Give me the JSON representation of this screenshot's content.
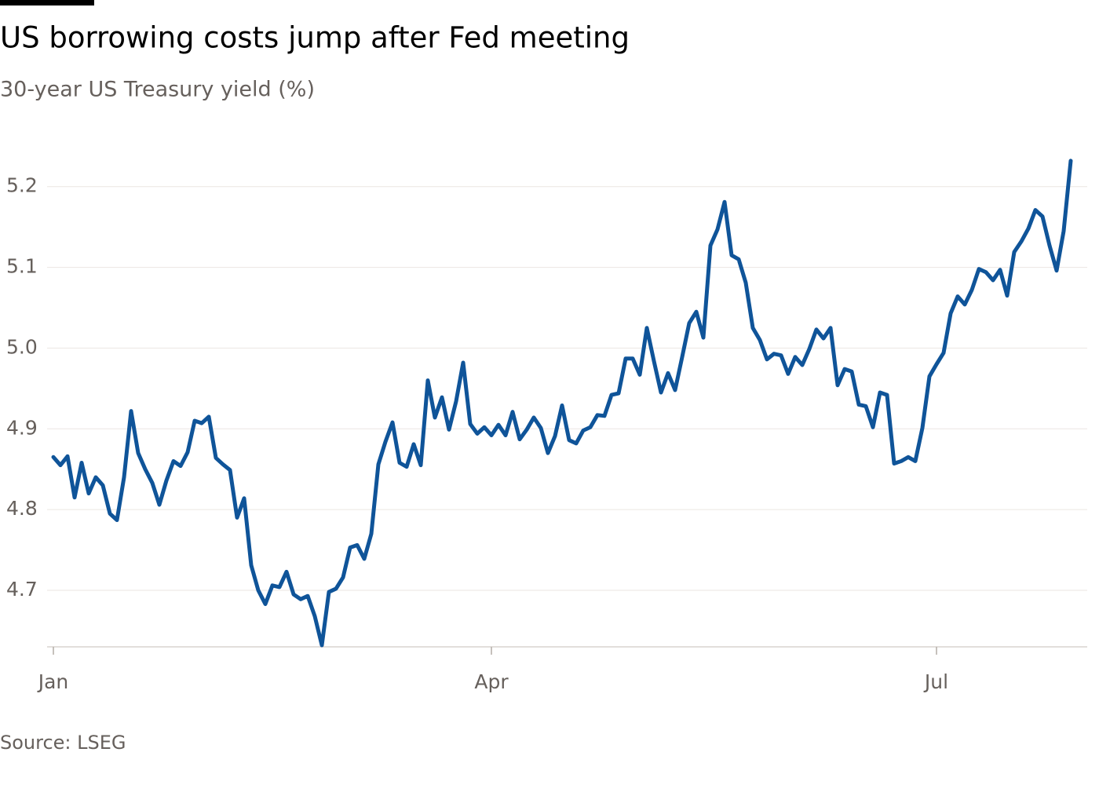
{
  "chart_data": {
    "type": "line",
    "title": "US borrowing costs jump after Fed meeting",
    "subtitle": "30-year US Treasury yield (%)",
    "source": "Source: LSEG",
    "categories": [
      "Jan",
      null,
      null,
      null,
      null,
      null,
      null,
      null,
      null,
      null,
      null,
      null,
      null,
      null,
      null,
      null,
      null,
      null,
      null,
      null,
      null,
      null,
      null,
      null,
      null,
      null,
      null,
      null,
      null,
      null,
      null,
      null,
      null,
      null,
      null,
      null,
      null,
      null,
      null,
      null,
      null,
      null,
      null,
      null,
      null,
      null,
      null,
      null,
      null,
      null,
      null,
      null,
      null,
      null,
      null,
      null,
      null,
      null,
      null,
      null,
      null,
      null,
      "Apr",
      null,
      null,
      null,
      null,
      null,
      null,
      null,
      null,
      null,
      null,
      null,
      null,
      null,
      null,
      null,
      null,
      null,
      null,
      null,
      null,
      null,
      null,
      null,
      null,
      null,
      null,
      null,
      null,
      null,
      null,
      null,
      null,
      null,
      null,
      null,
      null,
      null,
      null,
      null,
      null,
      null,
      null,
      null,
      null,
      null,
      null,
      null,
      null,
      null,
      null,
      null,
      null,
      null,
      null,
      null,
      null,
      null,
      null,
      null,
      null,
      null,
      null,
      "Jul",
      null,
      null,
      null,
      null,
      null,
      null,
      null,
      null,
      null,
      null,
      null,
      null,
      null,
      null,
      null,
      null,
      null,
      null,
      null
    ],
    "series": [
      {
        "name": "30-year US Treasury yield",
        "color": "#0f5499",
        "values": [
          4.865,
          4.855,
          4.866,
          4.815,
          4.858,
          4.82,
          4.84,
          4.83,
          4.795,
          4.787,
          4.84,
          4.922,
          4.87,
          4.85,
          4.833,
          4.806,
          4.836,
          4.86,
          4.854,
          4.871,
          4.91,
          4.907,
          4.915,
          4.864,
          4.856,
          4.849,
          4.79,
          4.814,
          4.731,
          4.7,
          4.683,
          4.706,
          4.704,
          4.723,
          4.695,
          4.689,
          4.693,
          4.668,
          4.632,
          4.698,
          4.702,
          4.716,
          4.753,
          4.756,
          4.739,
          4.77,
          4.856,
          4.884,
          4.908,
          4.858,
          4.853,
          4.881,
          4.855,
          4.96,
          4.914,
          4.939,
          4.899,
          4.934,
          4.982,
          4.906,
          4.894,
          4.902,
          4.892,
          4.905,
          4.892,
          4.921,
          4.887,
          4.899,
          4.914,
          4.901,
          4.87,
          4.891,
          4.929,
          4.886,
          4.882,
          4.898,
          4.902,
          4.917,
          4.916,
          4.942,
          4.944,
          4.987,
          4.987,
          4.967,
          5.025,
          4.984,
          4.945,
          4.969,
          4.948,
          4.989,
          5.031,
          5.045,
          5.013,
          5.127,
          5.147,
          5.181,
          5.115,
          5.11,
          5.081,
          5.025,
          5.01,
          4.986,
          4.993,
          4.991,
          4.968,
          4.989,
          4.979,
          4.999,
          5.023,
          5.012,
          5.025,
          4.954,
          4.974,
          4.971,
          4.93,
          4.928,
          4.902,
          4.945,
          4.942,
          4.857,
          4.86,
          4.865,
          4.86,
          4.901,
          4.965,
          4.98,
          4.994,
          5.043,
          5.064,
          5.054,
          5.072,
          5.098,
          5.094,
          5.084,
          5.097,
          5.065,
          5.119,
          5.132,
          5.148,
          5.171,
          5.163,
          5.127,
          5.096,
          5.145,
          5.232
        ]
      }
    ],
    "ylim": [
      4.63,
      5.26
    ],
    "yticks": [
      4.7,
      4.8,
      4.9,
      {
        "value": 5,
        "label": "5.0"
      },
      5.1,
      5.2
    ],
    "grid": true
  }
}
